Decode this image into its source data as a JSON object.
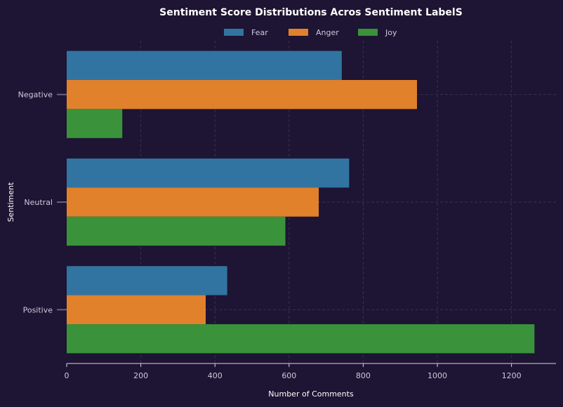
{
  "chart_data": {
    "type": "bar",
    "orientation": "horizontal",
    "title": "Sentiment Score Distributions Acros Sentiment LabelS",
    "xlabel": "Number of Comments",
    "ylabel": "Sentiment",
    "categories": [
      "Negative",
      "Neutral",
      "Positive"
    ],
    "series": [
      {
        "name": "Fear",
        "values": [
          742,
          762,
          433
        ],
        "color": "#3274a1"
      },
      {
        "name": "Anger",
        "values": [
          945,
          680,
          375
        ],
        "color": "#e1812c"
      },
      {
        "name": "Joy",
        "values": [
          150,
          590,
          1262
        ],
        "color": "#3a923a"
      }
    ],
    "xlim": [
      0,
      1320
    ],
    "xticks": [
      0,
      200,
      400,
      600,
      800,
      1000,
      1200
    ],
    "grid": true,
    "legend_position": "top-center"
  }
}
